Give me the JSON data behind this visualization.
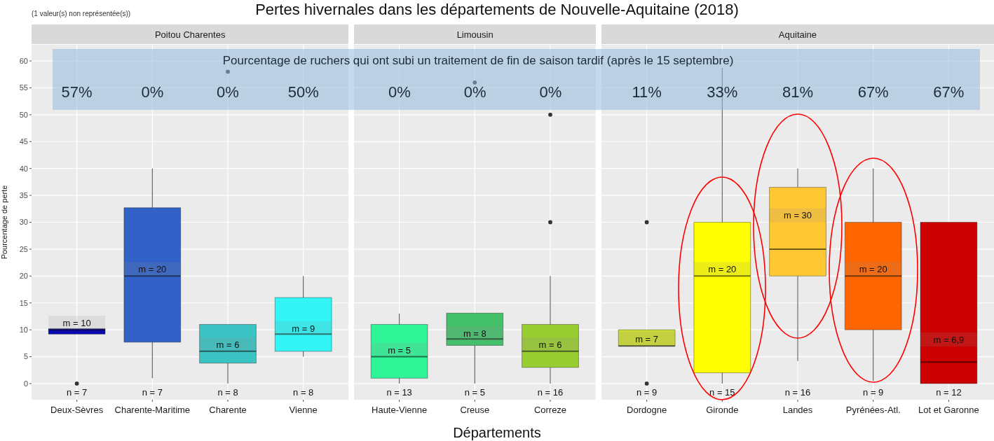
{
  "chart_data": [
    {
      "type": "box",
      "title": "Poitou Charentes",
      "ylabel": "Pourcentage de perte",
      "categories": [
        "Deux-Sèvres",
        "Charente-Maritime",
        "Charente",
        "Vienne"
      ],
      "boxes": [
        {
          "low": 9.2,
          "q1": 9.2,
          "median": 10,
          "q3": 10.2,
          "high": 10.2,
          "mean": 10,
          "outliers": [
            0
          ]
        },
        {
          "low": 1,
          "q1": 7.7,
          "median": 20,
          "q3": 32.7,
          "high": 40,
          "mean": 20
        },
        {
          "low": 0,
          "q1": 3.8,
          "median": 6,
          "q3": 11,
          "high": 11,
          "mean": 6,
          "outliers": [
            58
          ]
        },
        {
          "low": 5,
          "q1": 6,
          "median": 9.2,
          "q3": 16,
          "high": 20,
          "mean": 9
        }
      ],
      "colors": [
        "#0a0ab4",
        "#3262c8",
        "#3cc3c3",
        "#33f5f5"
      ],
      "ylim": [
        -3,
        63
      ],
      "yticks": [
        0,
        5,
        10,
        15,
        20,
        25,
        30,
        35,
        40,
        45,
        50,
        55,
        60
      ],
      "grid": true,
      "annotations": [
        "Pertes hivernales dans les départements de Nouvelle-Aquitaine (2018)",
        "(1 valeur(s) non représentée(s))",
        "Pourcentage de ruchers qui ont subi un traitement de fin de saison tardif (après le 15 septembre)",
        "57%",
        "0%",
        "0%",
        "50%",
        "m = 10",
        "m = 20",
        "m = 6",
        "m = 9",
        "n = 7",
        "n = 7",
        "n = 8",
        "n = 8"
      ]
    },
    {
      "type": "box",
      "title": "Limousin",
      "xlabel": "Départements",
      "categories": [
        "Haute-Vienne",
        "Creuse",
        "Correze"
      ],
      "boxes": [
        {
          "low": 0,
          "q1": 1,
          "median": 5,
          "q3": 11,
          "high": 13,
          "mean": 5
        },
        {
          "low": 0,
          "q1": 7.1,
          "median": 8.3,
          "q3": 13.1,
          "high": 13.1,
          "mean": 8,
          "outliers": [
            56
          ]
        },
        {
          "low": 0,
          "q1": 3,
          "median": 6,
          "q3": 11,
          "high": 20,
          "mean": 6,
          "outliers": [
            30,
            50
          ]
        }
      ],
      "colors": [
        "#30f598",
        "#45c06a",
        "#9acd32"
      ],
      "ylim": [
        -3,
        63
      ],
      "yticks": [
        0,
        5,
        10,
        15,
        20,
        25,
        30,
        35,
        40,
        45,
        50,
        55,
        60
      ],
      "grid": true,
      "tick_labels": "x",
      "annotations": [
        "0%",
        "0%",
        "0%",
        "m = 5",
        "m = 8",
        "m = 6",
        "n = 13",
        "n = 5",
        "n = 16"
      ]
    },
    {
      "type": "box",
      "title": "Aquitaine",
      "categories": [
        "Dordogne",
        "Gironde",
        "Landes",
        "Pyrénées-Atl.",
        "Lot et Garonne"
      ],
      "boxes": [
        {
          "low": 7,
          "q1": 7,
          "median": 7,
          "q3": 10,
          "high": 10,
          "mean": 7,
          "outliers": [
            30,
            0
          ]
        },
        {
          "low": 0,
          "q1": 2,
          "median": 20,
          "q3": 30,
          "high": 58.7,
          "mean": 20
        },
        {
          "low": 4.2,
          "q1": 20,
          "median": 25,
          "q3": 36.5,
          "high": 40,
          "mean": 30
        },
        {
          "low": 0.5,
          "q1": 10,
          "median": 20,
          "q3": 30,
          "high": 40,
          "mean": 20
        },
        {
          "low": 0,
          "q1": 0,
          "median": 4,
          "q3": 30,
          "high": 30,
          "mean": 6.9
        }
      ],
      "colors": [
        "#ccdd33",
        "#ffff00",
        "#ffc833",
        "#ff6600",
        "#cc0000"
      ],
      "ylim": [
        -3,
        63
      ],
      "yticks": [
        0,
        5,
        10,
        15,
        20,
        25,
        30,
        35,
        40,
        45,
        50,
        55,
        60
      ],
      "grid": true,
      "tick_labels": "x",
      "annotations": [
        "11%",
        "33%",
        "81%",
        "67%",
        "67%",
        "m = 7",
        "m = 20",
        "m = 30",
        "m = 20",
        "m = 6,9",
        "n = 9",
        "n = 15",
        "n = 16",
        "n = 9",
        "n = 12"
      ]
    }
  ]
}
